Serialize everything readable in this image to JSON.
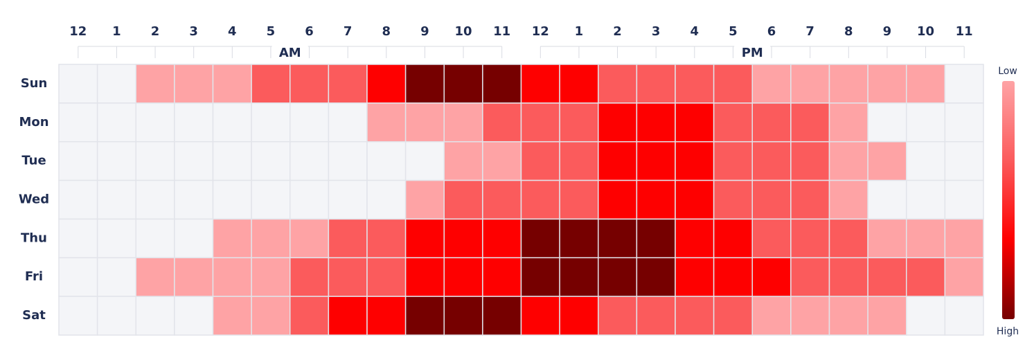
{
  "chart_data": {
    "type": "heatmap",
    "x_categories": [
      "12",
      "1",
      "2",
      "3",
      "4",
      "5",
      "6",
      "7",
      "8",
      "9",
      "10",
      "11",
      "12",
      "1",
      "2",
      "3",
      "4",
      "5",
      "6",
      "7",
      "8",
      "9",
      "10",
      "11"
    ],
    "x_groups": [
      "AM",
      "PM"
    ],
    "y_categories": [
      "Sun",
      "Mon",
      "Tue",
      "Wed",
      "Thu",
      "Fri",
      "Sat"
    ],
    "values": [
      [
        0,
        0,
        1,
        1,
        1,
        2,
        2,
        2,
        3,
        4,
        4,
        4,
        3,
        3,
        2,
        2,
        2,
        2,
        1,
        1,
        1,
        1,
        1,
        0
      ],
      [
        0,
        0,
        0,
        0,
        0,
        0,
        0,
        0,
        1,
        1,
        1,
        2,
        2,
        2,
        3,
        3,
        3,
        2,
        2,
        2,
        1,
        0,
        0,
        0
      ],
      [
        0,
        0,
        0,
        0,
        0,
        0,
        0,
        0,
        0,
        0,
        1,
        1,
        2,
        2,
        3,
        3,
        3,
        2,
        2,
        2,
        1,
        1,
        0,
        0
      ],
      [
        0,
        0,
        0,
        0,
        0,
        0,
        0,
        0,
        0,
        1,
        2,
        2,
        2,
        2,
        3,
        3,
        3,
        2,
        2,
        2,
        1,
        0,
        0,
        0
      ],
      [
        0,
        0,
        0,
        0,
        1,
        1,
        1,
        2,
        2,
        3,
        3,
        3,
        4,
        4,
        4,
        4,
        3,
        3,
        2,
        2,
        2,
        1,
        1,
        1
      ],
      [
        0,
        0,
        1,
        1,
        1,
        1,
        2,
        2,
        2,
        3,
        3,
        3,
        4,
        4,
        4,
        4,
        3,
        3,
        3,
        2,
        2,
        2,
        2,
        1
      ],
      [
        0,
        0,
        0,
        0,
        1,
        1,
        2,
        3,
        3,
        4,
        4,
        4,
        3,
        3,
        2,
        2,
        2,
        2,
        1,
        1,
        1,
        1,
        0,
        0
      ]
    ],
    "colors": [
      "#f4f5f8",
      "#fea3a5",
      "#fb5b5c",
      "#fe0000",
      "#760000"
    ],
    "legend_low": "Low",
    "legend_high": "High"
  }
}
